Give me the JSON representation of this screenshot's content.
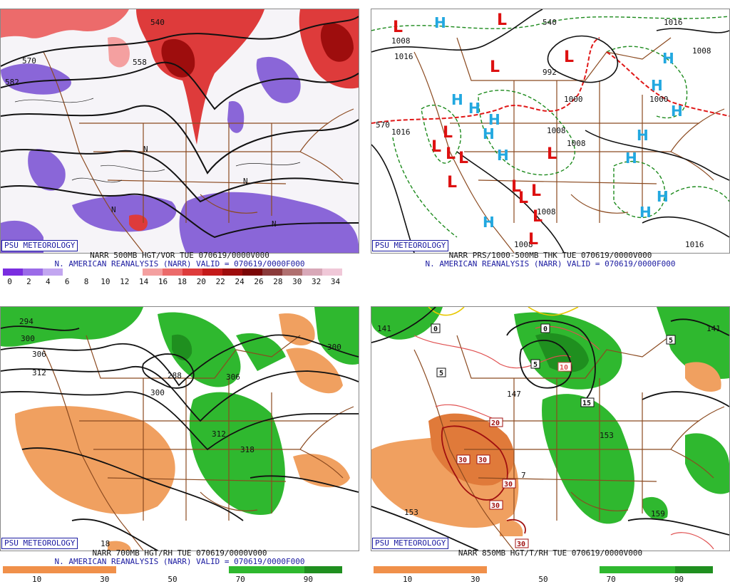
{
  "panels": [
    {
      "id": "tl",
      "brand": "PSU METEOROLOGY",
      "line1": "NARR 500MB HGT/VOR TUE 070619/0000V000",
      "line2": "N. AMERICAN REANALYSIS (NARR) VALID = 070619/0000F000",
      "colorbar": [
        "#7a2de0",
        "#9b6be8",
        "#c2a6f0",
        "#ffffff",
        "#ffffff",
        "#ffffff",
        "#ffffff",
        "#f4a0a0",
        "#ec6b6b",
        "#de3b3b",
        "#c41a1a",
        "#9e0d0d",
        "#7a0606",
        "#8a3a3a",
        "#b07070",
        "#d8a8b8",
        "#f0c8d8"
      ],
      "ticks": [
        "0",
        "2",
        "4",
        "6",
        "8",
        "10",
        "12",
        "14",
        "16",
        "18",
        "20",
        "22",
        "24",
        "26",
        "28",
        "30",
        "32",
        "34"
      ],
      "labels": [
        "540",
        "570",
        "582",
        "558",
        "N"
      ]
    },
    {
      "id": "tr",
      "brand": "PSU METEOROLOGY",
      "line1": "NARR PRS/1000-500MB THK TUE 070619/0000V000",
      "line2": "N. AMERICAN REANALYSIS (NARR) VALID = 070619/0000F000",
      "colorbar": [],
      "ticks": [],
      "labels": [
        "1008",
        "1016",
        "992",
        "1000",
        "L",
        "H",
        "540",
        "570"
      ]
    },
    {
      "id": "bl",
      "brand": "PSU METEOROLOGY",
      "line1": "NARR 700MB HGT/RH TUE 070619/0000V000",
      "line2": "N. AMERICAN REANALYSIS (NARR) VALID = 070619/0000F000",
      "colorbar": [
        "#f0904a",
        "#f0904a",
        "#f0904a",
        "#ffffff",
        "#ffffff",
        "#ffffff",
        "#2fb82f",
        "#2fb82f",
        "#1f8f1f"
      ],
      "ticks": [
        "10",
        "30",
        "50",
        "70",
        "90"
      ],
      "labels": [
        "294",
        "300",
        "306",
        "312",
        "288",
        "318",
        "18"
      ]
    },
    {
      "id": "br",
      "brand": "PSU METEOROLOGY",
      "line1": "NARR 850MB HGT/T/RH TUE 070619/0000V000",
      "line2": "",
      "colorbar": [
        "#f0904a",
        "#f0904a",
        "#f0904a",
        "#ffffff",
        "#ffffff",
        "#ffffff",
        "#2fb82f",
        "#2fb82f",
        "#1f8f1f"
      ],
      "ticks": [
        "10",
        "30",
        "50",
        "70",
        "90"
      ],
      "labels": [
        "141",
        "147",
        "153",
        "159",
        "0",
        "5",
        "10",
        "15",
        "20",
        "30"
      ]
    }
  ],
  "colors": {
    "brand": "#1a1aa0",
    "land_border": "#8b4a20",
    "contour": "#111111",
    "low": "#dd1111",
    "high": "#22a8e0"
  }
}
